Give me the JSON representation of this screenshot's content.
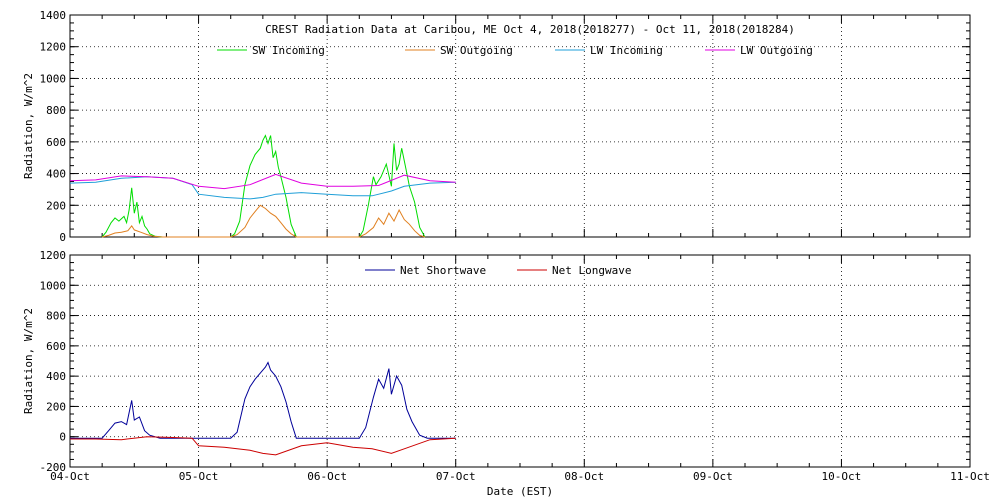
{
  "chart_data": [
    {
      "type": "line",
      "title": "CREST Radiation Data at Caribou, ME   Oct  4, 2018(2018277) - Oct 11, 2018(2018284)",
      "xlabel": "",
      "ylabel": "Radiation, W/m^2",
      "xlim": [
        "04-Oct",
        "11-Oct"
      ],
      "ylim": [
        0,
        1400
      ],
      "yticks": [
        0,
        200,
        400,
        600,
        800,
        1000,
        1200,
        1400
      ],
      "grid": true,
      "legend": "top",
      "colors": {
        "SW Incoming": "#00dd00",
        "SW Outgoing": "#e08020",
        "LW Incoming": "#1f9fd8",
        "LW Outgoing": "#e000e0"
      },
      "series": [
        {
          "name": "SW Incoming",
          "x": [
            0.25,
            0.28,
            0.32,
            0.35,
            0.38,
            0.42,
            0.44,
            0.46,
            0.48,
            0.5,
            0.52,
            0.54,
            0.56,
            0.58,
            0.6,
            0.62,
            0.66,
            0.72,
            1.25,
            1.28,
            1.32,
            1.36,
            1.4,
            1.44,
            1.48,
            1.5,
            1.52,
            1.54,
            1.56,
            1.58,
            1.6,
            1.62,
            1.64,
            1.68,
            1.72,
            1.76,
            2.25,
            2.28,
            2.32,
            2.36,
            2.38,
            2.42,
            2.46,
            2.5,
            2.52,
            2.54,
            2.56,
            2.58,
            2.6,
            2.62,
            2.64,
            2.68,
            2.72,
            2.76
          ],
          "y": [
            0,
            30,
            90,
            120,
            100,
            130,
            90,
            170,
            310,
            150,
            220,
            90,
            130,
            70,
            50,
            20,
            5,
            0,
            0,
            20,
            100,
            330,
            450,
            520,
            560,
            610,
            640,
            590,
            640,
            500,
            540,
            440,
            380,
            250,
            80,
            0,
            0,
            40,
            200,
            380,
            330,
            380,
            460,
            320,
            590,
            420,
            460,
            560,
            480,
            400,
            320,
            220,
            60,
            0
          ]
        },
        {
          "name": "SW Outgoing",
          "x": [
            0.25,
            0.3,
            0.35,
            0.4,
            0.45,
            0.48,
            0.5,
            0.55,
            0.6,
            0.65,
            0.72,
            1.25,
            1.3,
            1.36,
            1.4,
            1.44,
            1.48,
            1.52,
            1.56,
            1.6,
            1.64,
            1.68,
            1.72,
            1.76,
            2.25,
            2.3,
            2.36,
            2.4,
            2.44,
            2.48,
            2.52,
            2.56,
            2.6,
            2.64,
            2.68,
            2.72,
            2.76
          ],
          "y": [
            0,
            10,
            25,
            30,
            40,
            70,
            45,
            30,
            15,
            5,
            0,
            0,
            15,
            60,
            120,
            160,
            200,
            180,
            150,
            130,
            90,
            50,
            20,
            0,
            0,
            20,
            60,
            120,
            80,
            150,
            100,
            170,
            110,
            80,
            40,
            10,
            0
          ]
        },
        {
          "name": "LW Incoming",
          "x": [
            0,
            0.2,
            0.4,
            0.6,
            0.8,
            0.95,
            1.0,
            1.2,
            1.4,
            1.5,
            1.6,
            1.8,
            2.0,
            2.2,
            2.35,
            2.5,
            2.6,
            2.8,
            3.0
          ],
          "y": [
            340,
            345,
            370,
            380,
            370,
            330,
            270,
            250,
            240,
            250,
            270,
            280,
            270,
            260,
            260,
            290,
            320,
            340,
            345
          ]
        },
        {
          "name": "LW Outgoing",
          "x": [
            0,
            0.2,
            0.4,
            0.6,
            0.8,
            1.0,
            1.2,
            1.4,
            1.6,
            1.8,
            2.0,
            2.2,
            2.4,
            2.6,
            2.8,
            3.0
          ],
          "y": [
            355,
            360,
            385,
            380,
            370,
            320,
            305,
            330,
            395,
            340,
            320,
            320,
            325,
            390,
            355,
            345
          ]
        }
      ]
    },
    {
      "type": "line",
      "title": "",
      "xlabel": "Date (EST)",
      "ylabel": "Radiation, W/m^2",
      "xlim": [
        "04-Oct",
        "11-Oct"
      ],
      "ylim": [
        -200,
        1200
      ],
      "yticks": [
        -200,
        0,
        200,
        400,
        600,
        800,
        1000,
        1200
      ],
      "grid": true,
      "legend": "top",
      "categories": [
        "04-Oct",
        "05-Oct",
        "06-Oct",
        "07-Oct",
        "08-Oct",
        "09-Oct",
        "10-Oct",
        "11-Oct"
      ],
      "colors": {
        "Net Shortwave": "#000099",
        "Net Longwave": "#cc0000"
      },
      "series": [
        {
          "name": "Net Shortwave",
          "x": [
            0,
            0.25,
            0.3,
            0.35,
            0.4,
            0.44,
            0.48,
            0.5,
            0.54,
            0.58,
            0.62,
            0.7,
            1.0,
            1.25,
            1.3,
            1.36,
            1.4,
            1.44,
            1.48,
            1.52,
            1.54,
            1.56,
            1.6,
            1.64,
            1.68,
            1.72,
            1.76,
            2.0,
            2.25,
            2.3,
            2.36,
            2.4,
            2.44,
            2.48,
            2.5,
            2.54,
            2.58,
            2.62,
            2.66,
            2.72,
            2.78,
            3.0
          ],
          "y": [
            -10,
            -10,
            40,
            90,
            100,
            80,
            240,
            110,
            130,
            40,
            10,
            -10,
            -10,
            -10,
            30,
            250,
            330,
            380,
            420,
            460,
            490,
            440,
            400,
            330,
            230,
            100,
            -10,
            -10,
            -10,
            60,
            260,
            380,
            320,
            450,
            280,
            400,
            340,
            180,
            100,
            10,
            -10,
            -10
          ]
        },
        {
          "name": "Net Longwave",
          "x": [
            0,
            0.2,
            0.4,
            0.6,
            0.8,
            0.95,
            1.0,
            1.2,
            1.4,
            1.5,
            1.6,
            1.8,
            2.0,
            2.2,
            2.35,
            2.5,
            2.6,
            2.8,
            3.0
          ],
          "y": [
            -15,
            -15,
            -20,
            0,
            -5,
            -10,
            -60,
            -70,
            -90,
            -110,
            -120,
            -60,
            -40,
            -70,
            -80,
            -110,
            -80,
            -20,
            -10
          ]
        }
      ]
    }
  ]
}
